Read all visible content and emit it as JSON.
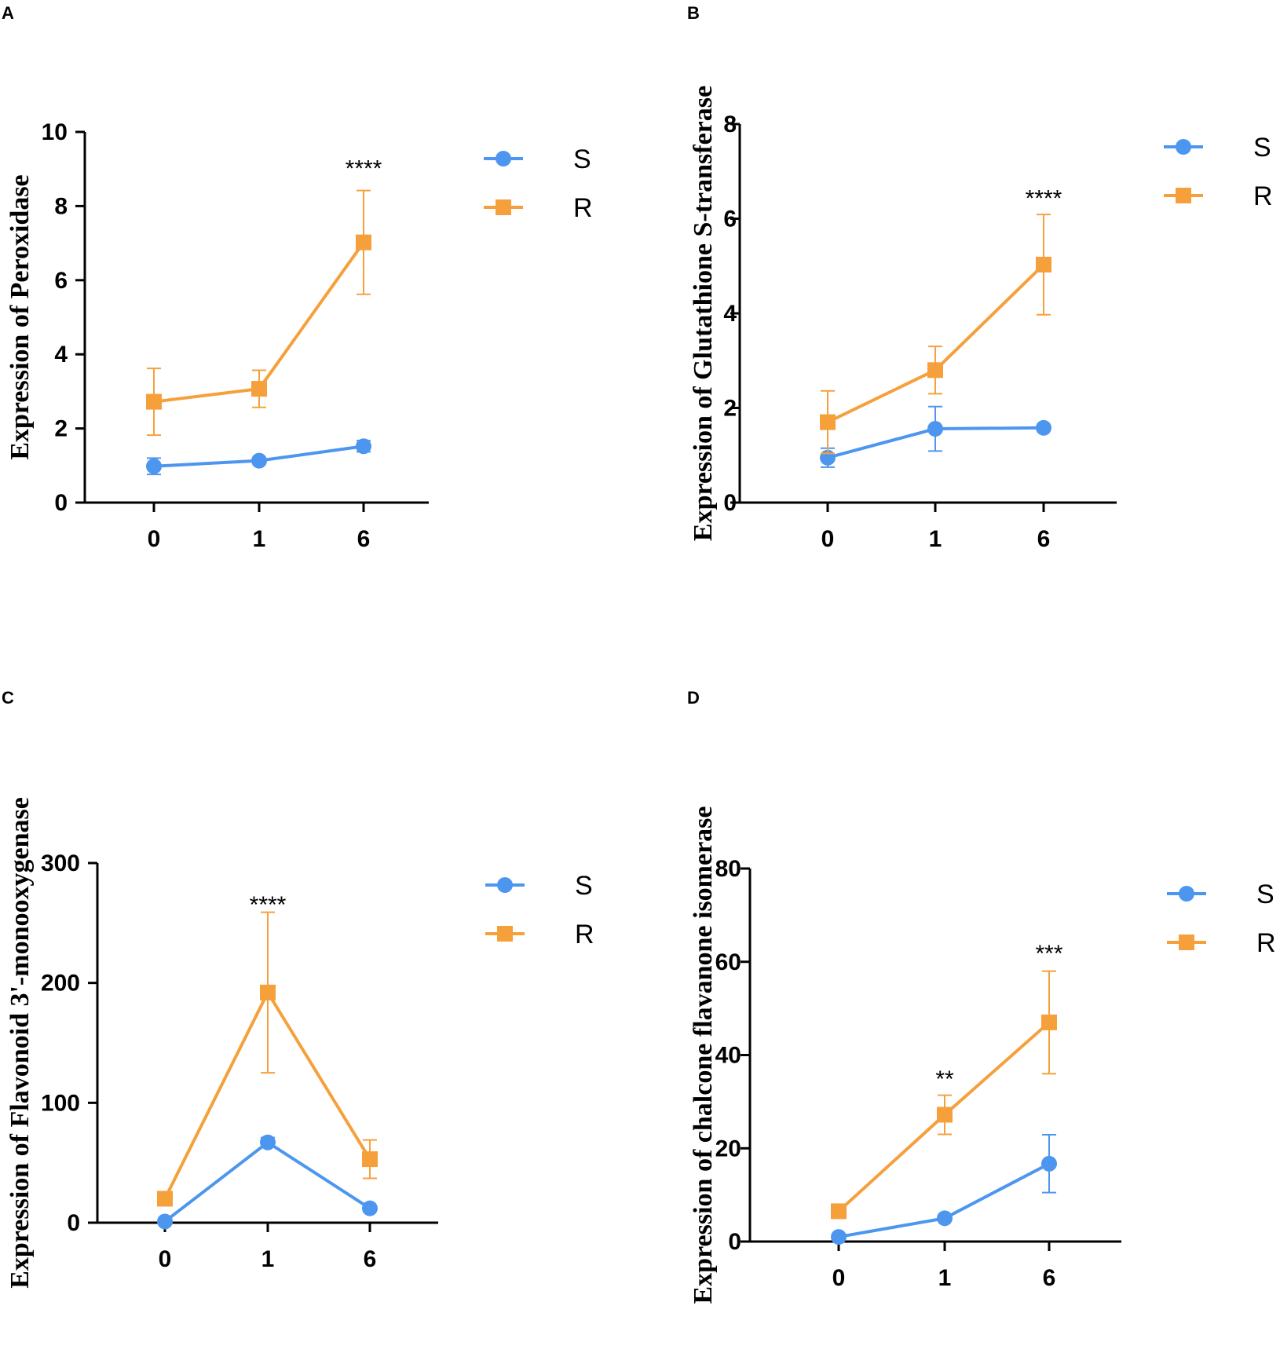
{
  "colors": {
    "S": "#4d96f0",
    "R": "#f6a03c",
    "axis": "#000000"
  },
  "chart_data": [
    {
      "panel": "A",
      "type": "line",
      "ylabel": "Expression of  Peroxidase",
      "xlabel": "",
      "categories": [
        "0",
        "1",
        "6"
      ],
      "ylim": [
        0,
        10
      ],
      "yticks": [
        0,
        2,
        4,
        6,
        8,
        10
      ],
      "series": [
        {
          "name": "S",
          "marker": "circle",
          "values": [
            0.98,
            1.13,
            1.52
          ],
          "err": [
            0.22,
            0.08,
            0.15
          ]
        },
        {
          "name": "R",
          "marker": "square",
          "values": [
            2.72,
            3.07,
            7.02
          ],
          "err": [
            0.9,
            0.5,
            1.4
          ]
        }
      ],
      "annotations": [
        {
          "series": "R",
          "index": 2,
          "text": "****",
          "y": 9.1
        }
      ]
    },
    {
      "panel": "B",
      "type": "line",
      "ylabel": "Expression of  Glutathione S-transferase",
      "xlabel": "",
      "categories": [
        "0",
        "1",
        "6"
      ],
      "ylim": [
        0,
        8
      ],
      "yticks": [
        0,
        2,
        4,
        6,
        8
      ],
      "series": [
        {
          "name": "S",
          "marker": "circle",
          "values": [
            0.95,
            1.56,
            1.58
          ],
          "err": [
            0.2,
            0.47,
            0.05
          ]
        },
        {
          "name": "R",
          "marker": "square",
          "values": [
            1.7,
            2.8,
            5.03
          ],
          "err": [
            0.66,
            0.5,
            1.06
          ]
        }
      ],
      "annotations": [
        {
          "series": "R",
          "index": 2,
          "text": "****",
          "y": 6.5
        }
      ]
    },
    {
      "panel": "C",
      "type": "line",
      "ylabel": "Expression of  Flavonoid 3'-monooxygenase",
      "xlabel": "",
      "categories": [
        "0",
        "1",
        "6"
      ],
      "ylim": [
        0,
        300
      ],
      "yticks": [
        0,
        100,
        200,
        300
      ],
      "series": [
        {
          "name": "S",
          "marker": "circle",
          "values": [
            1,
            67,
            12
          ],
          "err": [
            1,
            4,
            1
          ]
        },
        {
          "name": "R",
          "marker": "square",
          "values": [
            20,
            192,
            53
          ],
          "err": [
            2,
            67,
            16
          ]
        }
      ],
      "annotations": [
        {
          "series": "R",
          "index": 1,
          "text": "****",
          "y": 268
        }
      ]
    },
    {
      "panel": "D",
      "type": "line",
      "ylabel": "Expression of  chalcone flavanone isomerase",
      "xlabel": "",
      "categories": [
        "0",
        "1",
        "6"
      ],
      "ylim": [
        0,
        80
      ],
      "yticks": [
        0,
        20,
        40,
        60,
        80
      ],
      "series": [
        {
          "name": "S",
          "marker": "circle",
          "values": [
            1,
            5,
            16.7
          ],
          "err": [
            0.3,
            0.4,
            6.2
          ]
        },
        {
          "name": "R",
          "marker": "square",
          "values": [
            6.5,
            27.2,
            47
          ],
          "err": [
            0.5,
            4.2,
            11
          ]
        }
      ],
      "annotations": [
        {
          "series": "R",
          "index": 1,
          "text": "**",
          "y": 35.5
        },
        {
          "series": "R",
          "index": 2,
          "text": "***",
          "y": 62.5
        }
      ]
    }
  ]
}
